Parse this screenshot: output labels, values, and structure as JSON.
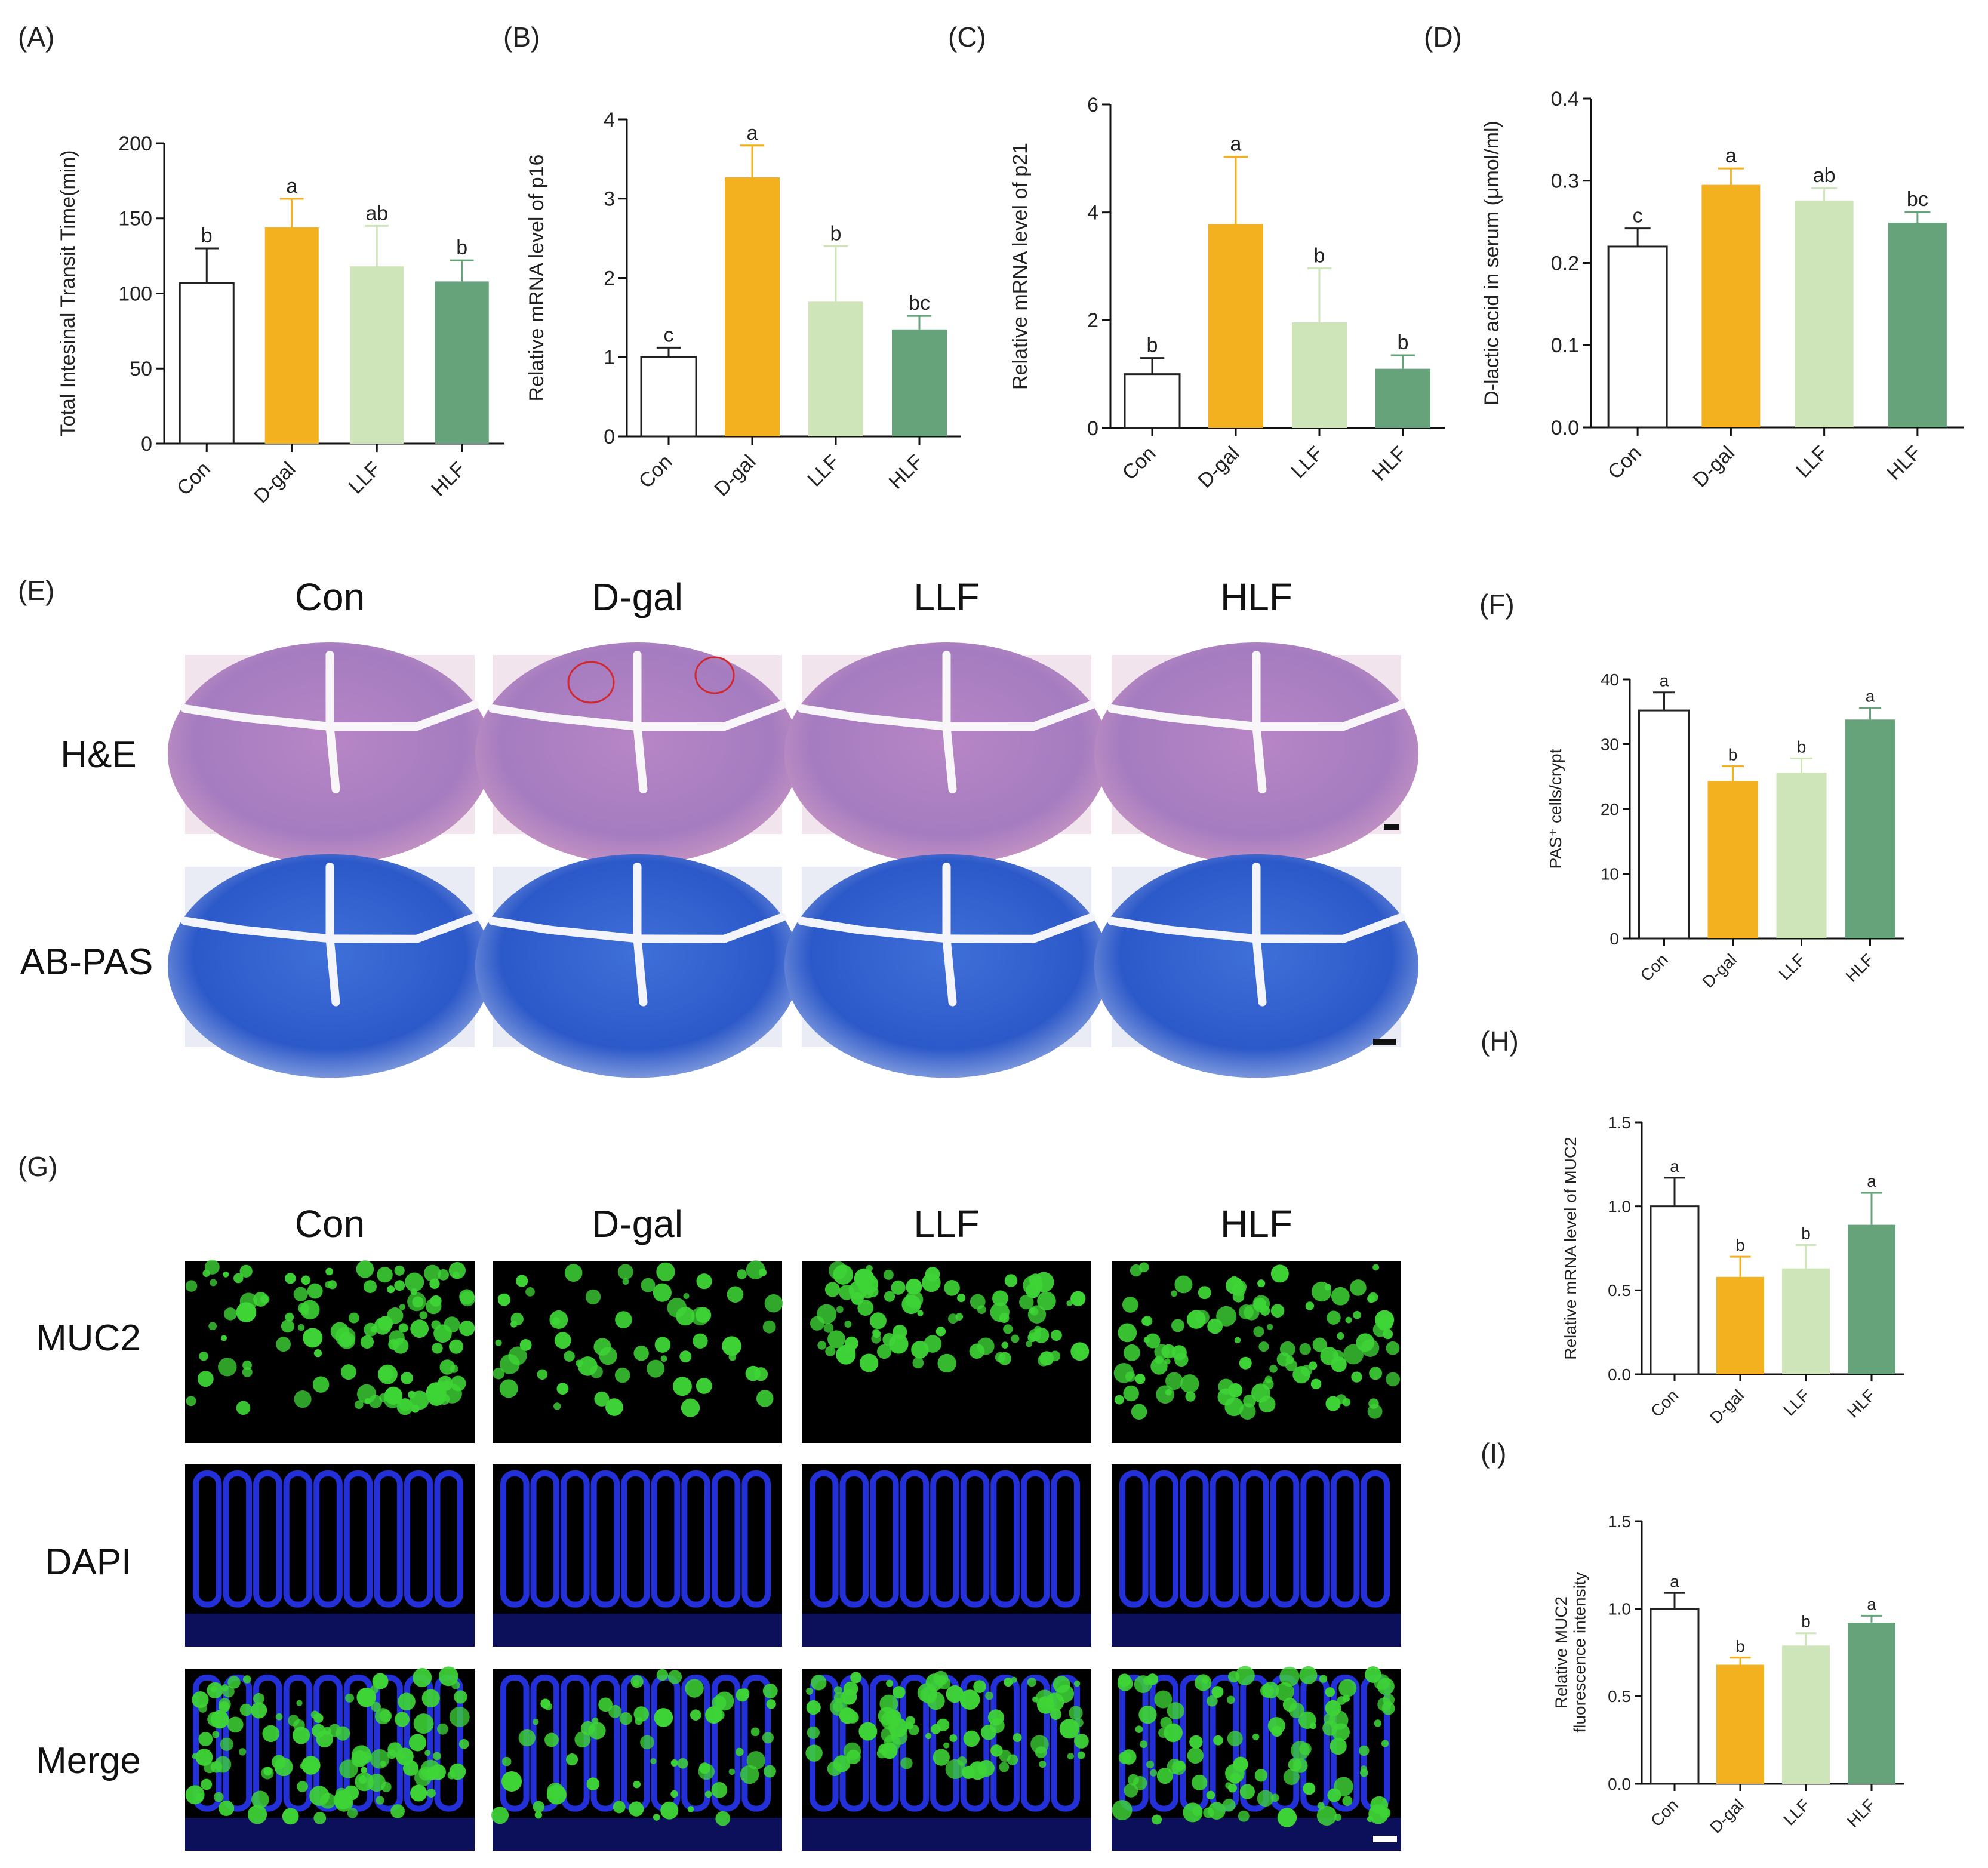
{
  "colors": {
    "Con": "#ffffff",
    "D-gal": "#f3b11f",
    "LLF": "#cde5b8",
    "HLF": "#67a37a",
    "axis": "#111111"
  },
  "section_labels": {
    "E": "(E)",
    "G": "(G)"
  },
  "histology": {
    "columns": [
      "Con",
      "D-gal",
      "LLF",
      "HLF"
    ],
    "he_row": "H&E",
    "abpas_row": "AB-PAS"
  },
  "fluorescence": {
    "columns": [
      "Con",
      "D-gal",
      "LLF",
      "HLF"
    ],
    "rows": [
      "MUC2",
      "DAPI",
      "Merge"
    ]
  },
  "chart_data": [
    {
      "id": "A",
      "panel": "(A)",
      "type": "bar",
      "categories": [
        "Con",
        "D-gal",
        "LLF",
        "HLF"
      ],
      "values": [
        107,
        144,
        118,
        108
      ],
      "errors": [
        23,
        19,
        27,
        14
      ],
      "letters": [
        "b",
        "a",
        "ab",
        "b"
      ],
      "ylabel": "Total Intesinal Transit Time(min)",
      "ylim": [
        0,
        200
      ],
      "yticks": [
        "0",
        "50",
        "100",
        "150",
        "200"
      ]
    },
    {
      "id": "B",
      "panel": "(B)",
      "type": "bar",
      "categories": [
        "Con",
        "D-gal",
        "LLF",
        "HLF"
      ],
      "values": [
        1.0,
        3.27,
        1.7,
        1.35
      ],
      "errors": [
        0.12,
        0.4,
        0.7,
        0.17
      ],
      "letters": [
        "c",
        "a",
        "b",
        "bc"
      ],
      "ylabel": "Relative mRNA level of p16",
      "ylim": [
        0,
        4
      ],
      "yticks": [
        "0",
        "1",
        "2",
        "3",
        "4"
      ]
    },
    {
      "id": "C",
      "panel": "(C)",
      "type": "bar",
      "categories": [
        "Con",
        "D-gal",
        "LLF",
        "HLF"
      ],
      "values": [
        1.0,
        3.78,
        1.96,
        1.1
      ],
      "errors": [
        0.3,
        1.25,
        1.0,
        0.25
      ],
      "letters": [
        "b",
        "a",
        "b",
        "b"
      ],
      "ylabel": "Relative mRNA level of p21",
      "ylim": [
        0,
        6
      ],
      "yticks": [
        "0",
        "2",
        "4",
        "6"
      ]
    },
    {
      "id": "D",
      "panel": "(D)",
      "type": "bar",
      "categories": [
        "Con",
        "D-gal",
        "LLF",
        "HLF"
      ],
      "values": [
        0.22,
        0.295,
        0.276,
        0.249
      ],
      "errors": [
        0.022,
        0.02,
        0.015,
        0.013
      ],
      "letters": [
        "c",
        "a",
        "ab",
        "bc"
      ],
      "ylabel": "D-lactic acid in serum (μmol/ml)",
      "ylim": [
        0,
        0.4
      ],
      "yticks": [
        "0.0",
        "0.1",
        "0.2",
        "0.3",
        "0.4"
      ]
    },
    {
      "id": "F",
      "panel": "(F)",
      "type": "bar",
      "categories": [
        "Con",
        "D-gal",
        "LLF",
        "HLF"
      ],
      "values": [
        35.2,
        24.3,
        25.6,
        33.8
      ],
      "errors": [
        2.8,
        2.3,
        2.2,
        1.8
      ],
      "letters": [
        "a",
        "b",
        "b",
        "a"
      ],
      "ylabel": "PAS⁺ cells/crypt",
      "ylim": [
        0,
        40
      ],
      "yticks": [
        "0",
        "10",
        "20",
        "30",
        "40"
      ]
    },
    {
      "id": "H",
      "panel": "(H)",
      "type": "bar",
      "categories": [
        "Con",
        "D-gal",
        "LLF",
        "HLF"
      ],
      "values": [
        1.0,
        0.58,
        0.63,
        0.89
      ],
      "errors": [
        0.17,
        0.12,
        0.14,
        0.19
      ],
      "letters": [
        "a",
        "b",
        "b",
        "a"
      ],
      "ylabel": "Relative mRNA level of MUC2",
      "ylim": [
        0,
        1.5
      ],
      "yticks": [
        "0.0",
        "0.5",
        "1.0",
        "1.5"
      ]
    },
    {
      "id": "I",
      "panel": "(I)",
      "type": "bar",
      "categories": [
        "Con",
        "D-gal",
        "LLF",
        "HLF"
      ],
      "values": [
        1.0,
        0.68,
        0.79,
        0.92
      ],
      "errors": [
        0.09,
        0.04,
        0.07,
        0.04
      ],
      "letters": [
        "a",
        "b",
        "b",
        "a"
      ],
      "ylabel": "Relative MUC2 fluorescence intensity",
      "ylabel_lines": [
        "Relative MUC2",
        "fluorescence intensity"
      ],
      "ylim": [
        0,
        1.5
      ],
      "yticks": [
        "0.0",
        "0.5",
        "1.0",
        "1.5"
      ]
    }
  ]
}
